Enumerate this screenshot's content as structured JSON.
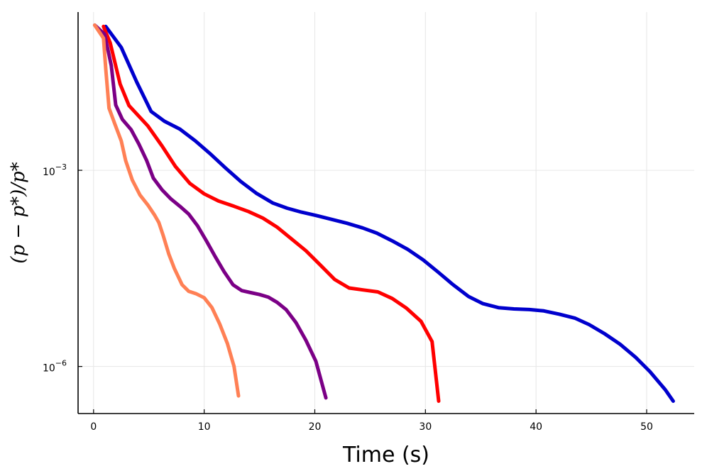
{
  "chart_data": {
    "type": "line",
    "title": "",
    "xlabel": "Time (s)",
    "ylabel": "(p − p*)/p*",
    "yscale": "log10",
    "xlim": [
      -1.4,
      54.3
    ],
    "ylim_log10": [
      -6.72,
      -0.58
    ],
    "grid": true,
    "legend": "none",
    "x_ticks": [
      {
        "value": 0,
        "label": "0"
      },
      {
        "value": 10,
        "label": "10"
      },
      {
        "value": 20,
        "label": "20"
      },
      {
        "value": 30,
        "label": "30"
      },
      {
        "value": 40,
        "label": "40"
      },
      {
        "value": 50,
        "label": "50"
      }
    ],
    "y_ticks": [
      {
        "value_log10": -3,
        "base": "10",
        "exponent": "−3"
      },
      {
        "value_log10": -6,
        "base": "10",
        "exponent": "−6"
      }
    ],
    "series": [
      {
        "name": "blue",
        "color": "#0000cd",
        "points": [
          [
            1.1,
            -0.8
          ],
          [
            2.5,
            -1.12
          ],
          [
            3.9,
            -1.65
          ],
          [
            5.2,
            -2.1
          ],
          [
            6.4,
            -2.25
          ],
          [
            7.8,
            -2.37
          ],
          [
            9.2,
            -2.55
          ],
          [
            10.5,
            -2.74
          ],
          [
            11.9,
            -2.96
          ],
          [
            13.3,
            -3.17
          ],
          [
            14.7,
            -3.35
          ],
          [
            16.2,
            -3.5
          ],
          [
            17.5,
            -3.58
          ],
          [
            18.8,
            -3.64
          ],
          [
            20.1,
            -3.69
          ],
          [
            21.5,
            -3.75
          ],
          [
            22.9,
            -3.81
          ],
          [
            24.3,
            -3.88
          ],
          [
            25.6,
            -3.96
          ],
          [
            27.0,
            -4.08
          ],
          [
            28.4,
            -4.21
          ],
          [
            29.8,
            -4.37
          ],
          [
            31.1,
            -4.55
          ],
          [
            32.5,
            -4.75
          ],
          [
            33.9,
            -4.93
          ],
          [
            35.2,
            -5.04
          ],
          [
            36.6,
            -5.1
          ],
          [
            38.0,
            -5.12
          ],
          [
            39.4,
            -5.13
          ],
          [
            40.7,
            -5.15
          ],
          [
            42.1,
            -5.2
          ],
          [
            43.5,
            -5.26
          ],
          [
            44.8,
            -5.36
          ],
          [
            46.2,
            -5.5
          ],
          [
            47.6,
            -5.66
          ],
          [
            49.0,
            -5.86
          ],
          [
            50.3,
            -6.08
          ],
          [
            51.7,
            -6.36
          ],
          [
            52.4,
            -6.53
          ]
        ]
      },
      {
        "name": "red",
        "color": "#ff0000",
        "points": [
          [
            0.9,
            -0.8
          ],
          [
            1.5,
            -1.05
          ],
          [
            2.4,
            -1.68
          ],
          [
            3.2,
            -2.01
          ],
          [
            4.9,
            -2.32
          ],
          [
            6.2,
            -2.63
          ],
          [
            7.4,
            -2.94
          ],
          [
            8.7,
            -3.2
          ],
          [
            10.0,
            -3.36
          ],
          [
            11.3,
            -3.47
          ],
          [
            12.7,
            -3.55
          ],
          [
            14.0,
            -3.63
          ],
          [
            15.3,
            -3.73
          ],
          [
            16.6,
            -3.87
          ],
          [
            17.9,
            -4.05
          ],
          [
            19.2,
            -4.23
          ],
          [
            20.5,
            -4.45
          ],
          [
            21.8,
            -4.67
          ],
          [
            23.1,
            -4.8
          ],
          [
            24.4,
            -4.83
          ],
          [
            25.7,
            -4.86
          ],
          [
            27.0,
            -4.96
          ],
          [
            28.3,
            -5.11
          ],
          [
            29.6,
            -5.31
          ],
          [
            30.6,
            -5.62
          ],
          [
            31.2,
            -6.53
          ]
        ]
      },
      {
        "name": "purple",
        "color": "#7b0086",
        "points": [
          [
            0.1,
            -0.78
          ],
          [
            1.0,
            -0.92
          ],
          [
            1.6,
            -1.4
          ],
          [
            2.0,
            -2.0
          ],
          [
            2.6,
            -2.22
          ],
          [
            3.4,
            -2.38
          ],
          [
            4.1,
            -2.6
          ],
          [
            4.8,
            -2.85
          ],
          [
            5.4,
            -3.12
          ],
          [
            6.2,
            -3.3
          ],
          [
            7.0,
            -3.44
          ],
          [
            7.8,
            -3.55
          ],
          [
            8.6,
            -3.67
          ],
          [
            9.4,
            -3.85
          ],
          [
            10.2,
            -4.08
          ],
          [
            11.0,
            -4.32
          ],
          [
            11.8,
            -4.55
          ],
          [
            12.6,
            -4.75
          ],
          [
            13.4,
            -4.84
          ],
          [
            14.2,
            -4.87
          ],
          [
            15.0,
            -4.9
          ],
          [
            15.8,
            -4.94
          ],
          [
            16.6,
            -5.02
          ],
          [
            17.4,
            -5.13
          ],
          [
            18.3,
            -5.33
          ],
          [
            19.2,
            -5.6
          ],
          [
            20.1,
            -5.92
          ],
          [
            21.0,
            -6.48
          ]
        ]
      },
      {
        "name": "orange",
        "color": "#ff8055",
        "points": [
          [
            0.1,
            -0.78
          ],
          [
            0.9,
            -0.98
          ],
          [
            1.1,
            -1.45
          ],
          [
            1.4,
            -2.05
          ],
          [
            1.9,
            -2.28
          ],
          [
            2.5,
            -2.55
          ],
          [
            2.9,
            -2.85
          ],
          [
            3.5,
            -3.15
          ],
          [
            4.2,
            -3.38
          ],
          [
            4.9,
            -3.53
          ],
          [
            5.5,
            -3.68
          ],
          [
            5.9,
            -3.8
          ],
          [
            6.3,
            -4.0
          ],
          [
            6.8,
            -4.28
          ],
          [
            7.3,
            -4.5
          ],
          [
            8.0,
            -4.75
          ],
          [
            8.6,
            -4.85
          ],
          [
            9.3,
            -4.89
          ],
          [
            10.0,
            -4.95
          ],
          [
            10.7,
            -5.1
          ],
          [
            11.4,
            -5.35
          ],
          [
            12.1,
            -5.65
          ],
          [
            12.7,
            -6.0
          ],
          [
            13.1,
            -6.45
          ]
        ]
      }
    ]
  }
}
